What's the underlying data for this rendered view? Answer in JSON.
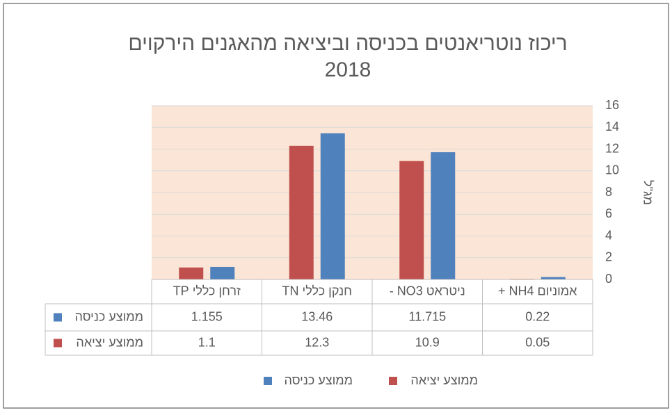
{
  "chart_data": {
    "type": "bar",
    "title": "ריכוז נוטריאנטים בכניסה וביציאה מהאגנים הירקוים",
    "subtitle": "2018",
    "y_axis_label": "מג\"ל",
    "categories": [
      "אמוניום NH4 +",
      "ניטראט NO3 -",
      "חנקן כללי TN",
      "זרחן כללי TP"
    ],
    "series": [
      {
        "name": "ממוצע כניסה",
        "color": "#4f81bd",
        "values": [
          0.22,
          11.715,
          13.46,
          1.155
        ]
      },
      {
        "name": "ממוצע יציאה",
        "color": "#c0504d",
        "values": [
          0.05,
          10.9,
          12.3,
          1.1
        ]
      }
    ],
    "ylim": [
      0,
      16
    ],
    "yticks": [
      0,
      2,
      4,
      6,
      8,
      10,
      12,
      14,
      16
    ],
    "grid": true,
    "y_axis_side": "right",
    "plot_background": "#fbe5d6",
    "data_table": true
  }
}
